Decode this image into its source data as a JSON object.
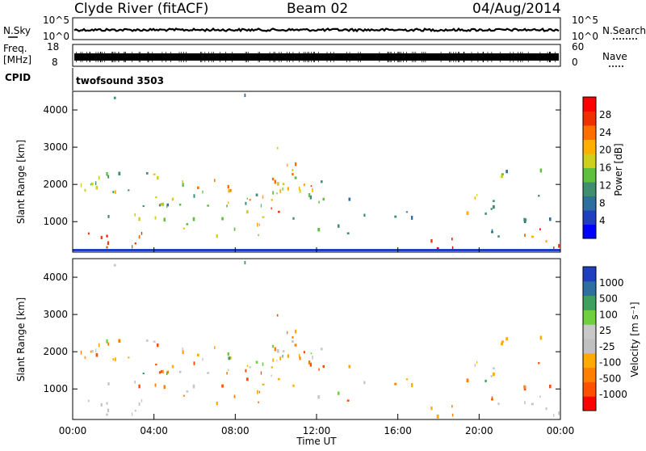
{
  "header": {
    "station": "Clyde River (fitACF)",
    "beam": "Beam 02",
    "date": "04/Aug/2014"
  },
  "top_panels": {
    "nsky_label": "N.Sky",
    "nsky_ticks": [
      "10^5",
      "10^0"
    ],
    "nsearch_label": "N.Search",
    "nsearch_ticks": [
      "10^5",
      "10^0"
    ],
    "freq_label_1": "Freq.",
    "freq_label_2": "[MHz]",
    "freq_ticks": [
      "18",
      "8"
    ],
    "nave_label": "Nave",
    "nave_ticks": [
      "60",
      "0"
    ],
    "cpid_label": "CPID",
    "cpid_value": "twofsound 3503"
  },
  "colors": {
    "power_scale": [
      "#0000ff",
      "#1f3fbf",
      "#2f6f9f",
      "#3f8f6f",
      "#5fbf3f",
      "#cfcf1f",
      "#ffaf00",
      "#ff6f00",
      "#ef2f00",
      "#ff0000"
    ],
    "velocity_scale": [
      "#1f3fbf",
      "#2f6f9f",
      "#3f9f5f",
      "#6fcf3f",
      "#c8c8c8",
      "#c0c0c0",
      "#ffaa00",
      "#ff7f00",
      "#ff4f00",
      "#ff0000"
    ]
  },
  "chart_data": [
    {
      "type": "heatmap",
      "name": "power",
      "ylabel": "Slant Range [km]",
      "xlabel": "",
      "ylim": [
        180,
        4500
      ],
      "yticks": [
        "1000",
        "2000",
        "3000",
        "4000"
      ],
      "xticks": [],
      "colorbar_label": "Power [dB]",
      "colorbar_ticks": [
        "4",
        "8",
        "12",
        "16",
        "20",
        "24",
        "28"
      ],
      "colorbar_range": [
        0,
        30
      ]
    },
    {
      "type": "heatmap",
      "name": "velocity",
      "ylabel": "Slant Range [km]",
      "xlabel": "Time UT",
      "ylim": [
        180,
        4500
      ],
      "yticks": [
        "1000",
        "2000",
        "3000",
        "4000"
      ],
      "xticks": [
        "00:00",
        "04:00",
        "08:00",
        "12:00",
        "16:00",
        "20:00",
        "00:00"
      ],
      "colorbar_label": "Velocity [m s⁻¹]",
      "colorbar_ticks": [
        "1000",
        "500",
        "100",
        "25",
        "-25",
        "-100",
        "-500",
        "-1000"
      ]
    }
  ]
}
